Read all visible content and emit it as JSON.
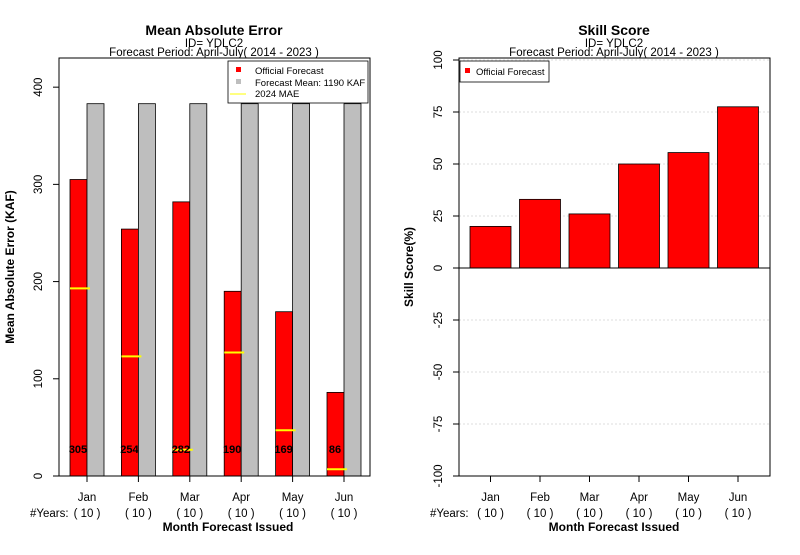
{
  "colors": {
    "official": "#ff0000",
    "mean": "#bebebe",
    "mae_line": "#ffff00",
    "grid": "#d3d3d3"
  },
  "chart_data": [
    {
      "type": "bar",
      "title": "Mean Absolute Error",
      "subtitle1": "ID= YDLC2",
      "subtitle2": "Forecast Period: April-July( 2014 - 2023 )",
      "xlabel": "Month Forecast Issued",
      "ylabel": "Mean Absolute Error (KAF)",
      "ylim": [
        0,
        430
      ],
      "yticks": [
        "0",
        "100",
        "200",
        "300",
        "400"
      ],
      "categories": [
        "Jan",
        "Feb",
        "Mar",
        "Apr",
        "May",
        "Jun"
      ],
      "years_label": "#Years:",
      "years": [
        "( 10 )",
        "( 10 )",
        "( 10 )",
        "( 10 )",
        "( 10 )",
        "( 10 )"
      ],
      "series": [
        {
          "name": "Official Forecast",
          "values": [
            305,
            254,
            282,
            190,
            169,
            86
          ]
        },
        {
          "name": "Forecast Mean: 1190 KAF",
          "values": [
            383,
            383,
            383,
            383,
            383,
            383
          ]
        },
        {
          "name": " 2024  MAE",
          "values": [
            193,
            123,
            27,
            127,
            47,
            7
          ]
        }
      ],
      "data_labels": [
        "305",
        "254",
        "282",
        "190",
        "169",
        "86"
      ],
      "legend_position": "top-right"
    },
    {
      "type": "bar",
      "title": "Skill Score",
      "subtitle1": "ID= YDLC2",
      "subtitle2": "Forecast Period: April-July( 2014 - 2023 )",
      "xlabel": "Month Forecast Issued",
      "ylabel": "Skill Score(%)",
      "ylim": [
        -100,
        100
      ],
      "yticks": [
        "-100",
        "-75",
        "-50",
        "-25",
        "0",
        "25",
        "50",
        "75",
        "100"
      ],
      "categories": [
        "Jan",
        "Feb",
        "Mar",
        "Apr",
        "May",
        "Jun"
      ],
      "years_label": "#Years:",
      "years": [
        "( 10 )",
        "( 10 )",
        "( 10 )",
        "( 10 )",
        "( 10 )",
        "( 10 )"
      ],
      "series": [
        {
          "name": "Official Forecast",
          "values": [
            20,
            33,
            26,
            50,
            55.5,
            77.5
          ]
        }
      ],
      "grid": true,
      "legend_position": "top-left"
    }
  ]
}
